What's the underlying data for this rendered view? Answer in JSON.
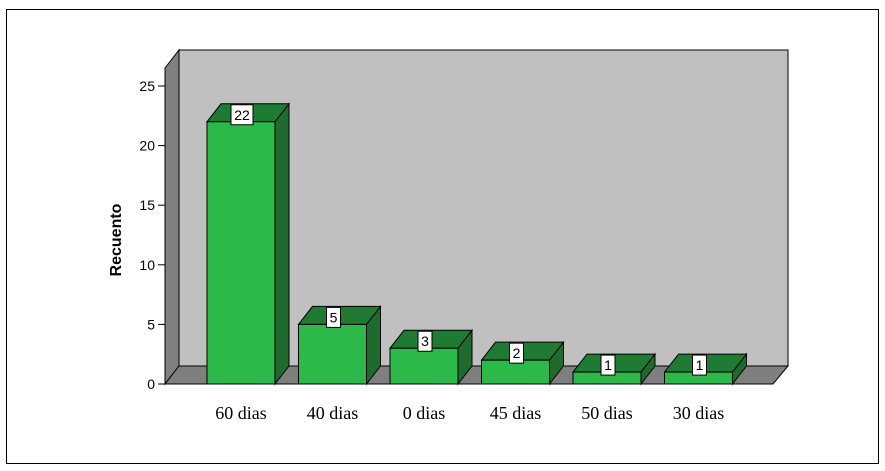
{
  "chart_data": {
    "type": "bar",
    "style": "3d",
    "categories": [
      "60 dias",
      "40 dias",
      "0 dias",
      "45 dias",
      "50 dias",
      "30 dias"
    ],
    "values": [
      22,
      5,
      3,
      2,
      1,
      1
    ],
    "data_labels": [
      "22",
      "5",
      "3",
      "2",
      "1",
      "1"
    ],
    "title": "",
    "xlabel": "",
    "ylabel": "Recuento",
    "ylim": [
      0,
      25
    ],
    "yticks": [
      "0",
      "5",
      "10",
      "15",
      "20",
      "25"
    ],
    "grid": false,
    "legend": "none",
    "colors": {
      "bar_front": "#2db84a",
      "bar_top": "#1f7a34",
      "bar_side": "#1f6b2e",
      "wall": "#c0c0c0",
      "floor": "#7f7f7f",
      "left_wall": "#808080",
      "label_box": "#ffffff"
    }
  }
}
